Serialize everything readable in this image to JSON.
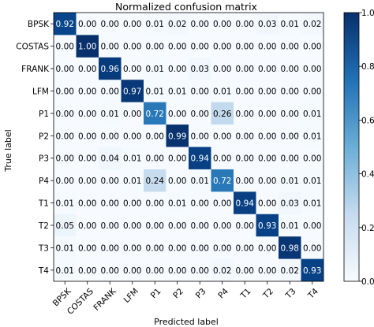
{
  "chart_data": {
    "type": "heatmap",
    "title": "Normalized confusion matrix",
    "xlabel": "Predicted label",
    "ylabel": "True label",
    "rows": [
      "BPSK",
      "COSTAS",
      "FRANK",
      "LFM",
      "P1",
      "P2",
      "P3",
      "P4",
      "T1",
      "T2",
      "T3",
      "T4"
    ],
    "cols": [
      "BPSK",
      "COSTAS",
      "FRANK",
      "LFM",
      "P1",
      "P2",
      "P3",
      "P4",
      "T1",
      "T2",
      "T3",
      "T4"
    ],
    "values": [
      [
        0.92,
        0.0,
        0.0,
        0.0,
        0.01,
        0.02,
        0.0,
        0.0,
        0.0,
        0.03,
        0.01,
        0.02
      ],
      [
        0.0,
        1.0,
        0.0,
        0.0,
        0.0,
        0.0,
        0.0,
        0.0,
        0.0,
        0.0,
        0.0,
        0.0
      ],
      [
        0.0,
        0.0,
        0.96,
        0.0,
        0.01,
        0.0,
        0.03,
        0.0,
        0.0,
        0.0,
        0.0,
        0.0
      ],
      [
        0.0,
        0.0,
        0.0,
        0.97,
        0.01,
        0.01,
        0.0,
        0.01,
        0.0,
        0.0,
        0.0,
        0.0
      ],
      [
        0.0,
        0.0,
        0.01,
        0.0,
        0.72,
        0.0,
        0.0,
        0.26,
        0.0,
        0.0,
        0.0,
        0.01
      ],
      [
        0.0,
        0.0,
        0.0,
        0.0,
        0.0,
        0.99,
        0.0,
        0.0,
        0.0,
        0.0,
        0.0,
        0.01
      ],
      [
        0.0,
        0.0,
        0.04,
        0.01,
        0.0,
        0.0,
        0.94,
        0.0,
        0.0,
        0.0,
        0.0,
        0.0
      ],
      [
        0.0,
        0.0,
        0.0,
        0.01,
        0.24,
        0.0,
        0.01,
        0.72,
        0.0,
        0.0,
        0.01,
        0.01
      ],
      [
        0.01,
        0.0,
        0.0,
        0.0,
        0.0,
        0.01,
        0.0,
        0.0,
        0.94,
        0.0,
        0.03,
        0.01
      ],
      [
        0.05,
        0.0,
        0.0,
        0.0,
        0.0,
        0.0,
        0.0,
        0.0,
        0.0,
        0.93,
        0.01,
        0.0
      ],
      [
        0.01,
        0.0,
        0.0,
        0.0,
        0.0,
        0.0,
        0.0,
        0.0,
        0.0,
        0.0,
        0.98,
        0.0
      ],
      [
        0.01,
        0.0,
        0.0,
        0.0,
        0.0,
        0.0,
        0.0,
        0.02,
        0.0,
        0.0,
        0.02,
        0.93
      ]
    ],
    "value_range": [
      0.0,
      1.0
    ],
    "colorbar_ticks": [
      "0.0",
      "0.2",
      "0.4",
      "0.6",
      "0.8",
      "1.0"
    ],
    "colormap": {
      "low": "#f7fbff",
      "high": "#08306b"
    },
    "text_color_dark": "#000000",
    "text_color_light": "#ffffff"
  }
}
